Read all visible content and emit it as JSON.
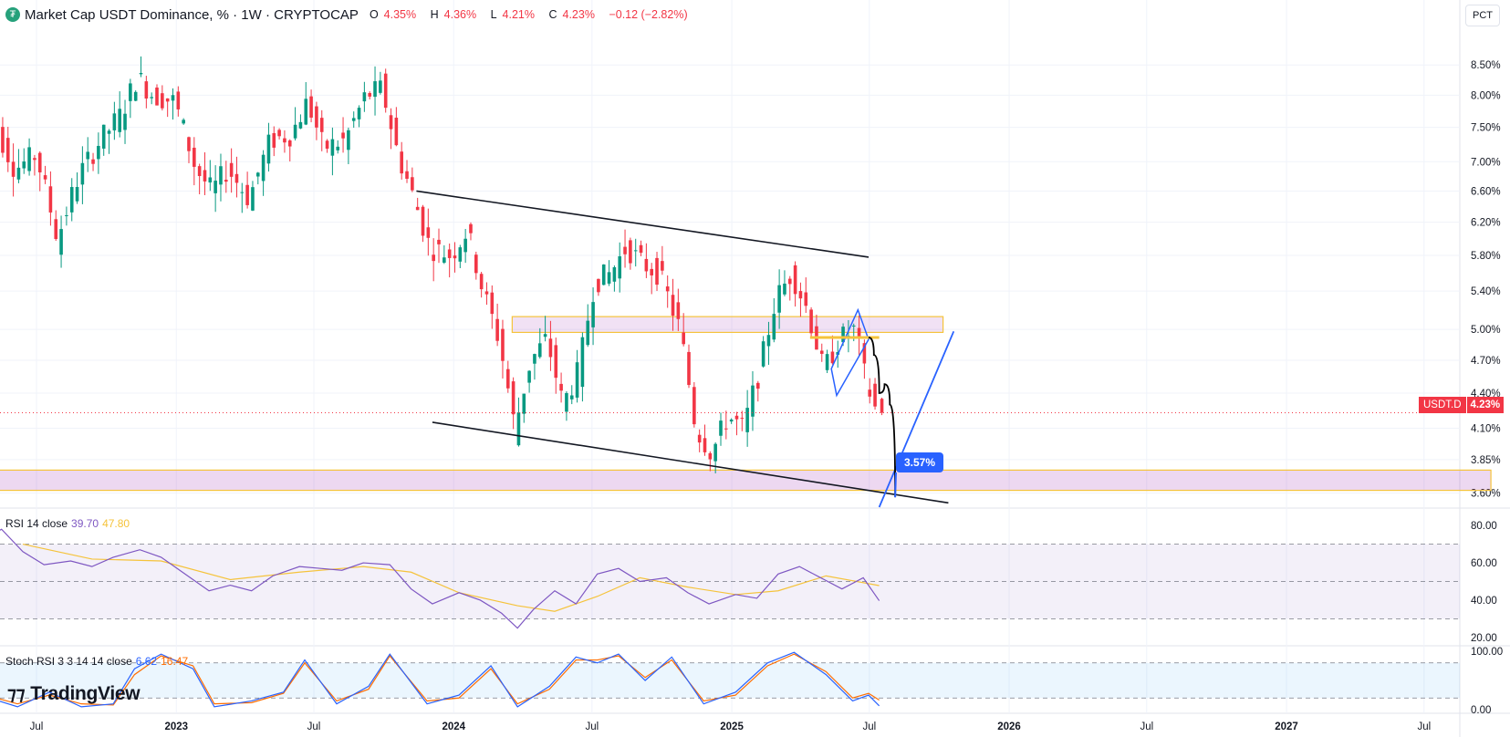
{
  "header": {
    "title": "Market Cap USDT Dominance, % · 1W · CRYPTOCAP",
    "open_label": "O",
    "open": "4.35%",
    "high_label": "H",
    "high": "4.36%",
    "low_label": "L",
    "low": "4.21%",
    "close_label": "C",
    "close": "4.23%",
    "change": "−0.12 (−2.82%)"
  },
  "scale_button": "PCT",
  "price_tag": {
    "symbol": "USDT.D",
    "value": "4.23%"
  },
  "target_callout": "3.57%",
  "rsi_label": {
    "name": "RSI 14 close",
    "value": "39.70",
    "ma": "47.80"
  },
  "stoch_label": {
    "name": "Stoch RSI 3 3 14 14 close",
    "k": "6.62",
    "d": "16.47"
  },
  "brand": "TradingView",
  "colors": {
    "up": "#089981",
    "down": "#f23645",
    "rsi": "#7e57c2",
    "rsi_ma": "#f5c33b",
    "stoch_k": "#2962ff",
    "stoch_d": "#ff6d00",
    "zone": "#f5c33b"
  },
  "chart_data": [
    {
      "type": "candlestick",
      "title": "Market Cap USDT Dominance, % · 1W · CRYPTOCAP",
      "y_ticks": [
        "8.50%",
        "8.00%",
        "7.50%",
        "7.00%",
        "6.60%",
        "6.20%",
        "5.80%",
        "5.40%",
        "5.00%",
        "4.70%",
        "4.40%",
        "4.10%",
        "3.85%",
        "3.60%"
      ],
      "x_ticks": [
        "Jul",
        "2023",
        "Jul",
        "2024",
        "Jul",
        "2025",
        "Jul",
        "2026",
        "Jul",
        "2027",
        "Jul"
      ],
      "x_tick_dates": [
        "2022-07-01",
        "2023-01-01",
        "2023-07-01",
        "2024-01-01",
        "2024-07-01",
        "2025-01-01",
        "2025-07-01",
        "2026-01-01",
        "2026-07-01",
        "2027-01-01",
        "2027-07-01"
      ],
      "ylim": [
        3.5,
        9.2
      ],
      "last_value": 4.23,
      "price_path": [
        [
          "2022-04-25",
          5.8
        ],
        [
          "2022-05-16",
          7.4
        ],
        [
          "2022-06-06",
          6.9
        ],
        [
          "2022-07-04",
          7.1
        ],
        [
          "2022-08-01",
          6.0
        ],
        [
          "2022-08-29",
          6.8
        ],
        [
          "2022-09-26",
          7.3
        ],
        [
          "2022-10-24",
          7.7
        ],
        [
          "2022-11-14",
          8.3
        ],
        [
          "2022-12-05",
          8.0
        ],
        [
          "2023-01-02",
          7.9
        ],
        [
          "2023-01-30",
          6.9
        ],
        [
          "2023-02-20",
          6.6
        ],
        [
          "2023-03-13",
          6.9
        ],
        [
          "2023-04-10",
          6.5
        ],
        [
          "2023-05-08",
          7.3
        ],
        [
          "2023-06-05",
          7.4
        ],
        [
          "2023-06-26",
          7.9
        ],
        [
          "2023-07-17",
          7.2
        ],
        [
          "2023-08-14",
          7.3
        ],
        [
          "2023-09-11",
          8.0
        ],
        [
          "2023-10-02",
          8.1
        ],
        [
          "2023-10-23",
          7.1
        ],
        [
          "2023-11-13",
          6.5
        ],
        [
          "2023-12-04",
          5.9
        ],
        [
          "2024-01-01",
          5.8
        ],
        [
          "2024-01-22",
          6.1
        ],
        [
          "2024-02-12",
          5.4
        ],
        [
          "2024-03-04",
          4.9
        ],
        [
          "2024-03-25",
          4.1
        ],
        [
          "2024-04-15",
          4.7
        ],
        [
          "2024-05-06",
          4.9
        ],
        [
          "2024-05-27",
          4.3
        ],
        [
          "2024-06-17",
          4.6
        ],
        [
          "2024-07-08",
          5.5
        ],
        [
          "2024-07-29",
          5.6
        ],
        [
          "2024-08-19",
          5.9
        ],
        [
          "2024-09-09",
          5.7
        ],
        [
          "2024-09-30",
          5.6
        ],
        [
          "2024-10-28",
          5.0
        ],
        [
          "2024-11-18",
          4.1
        ],
        [
          "2024-12-09",
          3.9
        ],
        [
          "2024-12-30",
          4.2
        ],
        [
          "2025-01-20",
          4.1
        ],
        [
          "2025-02-10",
          4.6
        ],
        [
          "2025-03-03",
          5.3
        ],
        [
          "2025-03-24",
          5.6
        ],
        [
          "2025-04-14",
          5.2
        ],
        [
          "2025-05-05",
          4.6
        ],
        [
          "2025-05-26",
          4.9
        ],
        [
          "2025-06-16",
          5.0
        ],
        [
          "2025-06-30",
          4.5
        ],
        [
          "2025-07-14",
          4.23
        ]
      ],
      "drawings": {
        "channel_upper": [
          [
            "2023-11-13",
            6.6
          ],
          [
            "2025-06-30",
            5.78
          ]
        ],
        "channel_lower": [
          [
            "2023-12-04",
            4.15
          ],
          [
            "2025-10-13",
            3.53
          ]
        ],
        "resistance_zone": {
          "from": "2024-03-18",
          "to": "2025-10-06",
          "low": 4.97,
          "high": 5.13
        },
        "support_zone": {
          "from": "2022-04-18",
          "to": "2027-09-27",
          "low": 3.62,
          "high": 3.77
        },
        "rising_line": [
          [
            "2025-07-14",
            3.5
          ],
          [
            "2025-10-20",
            4.98
          ]
        ],
        "projection_path": [
          [
            "2025-06-30",
            4.92
          ],
          [
            "2025-07-07",
            4.75
          ],
          [
            "2025-07-14",
            4.4
          ],
          [
            "2025-07-21",
            4.48
          ],
          [
            "2025-07-28",
            4.3
          ],
          [
            "2025-08-04",
            3.57
          ]
        ],
        "target_value": 3.57
      }
    },
    {
      "type": "line",
      "title": "RSI 14 close",
      "y_ticks": [
        "80.00",
        "60.00",
        "40.00",
        "20.00"
      ],
      "ylim": [
        17,
        83
      ],
      "bands": [
        70,
        50,
        30
      ],
      "series": [
        {
          "name": "RSI 14 close",
          "path": [
            [
              "2022-04-25",
              73
            ],
            [
              "2022-05-16",
              78
            ],
            [
              "2022-06-13",
              66
            ],
            [
              "2022-07-11",
              59
            ],
            [
              "2022-08-15",
              61
            ],
            [
              "2022-09-12",
              58
            ],
            [
              "2022-10-10",
              63
            ],
            [
              "2022-11-14",
              67
            ],
            [
              "2022-12-12",
              63
            ],
            [
              "2023-01-09",
              55
            ],
            [
              "2023-02-13",
              45
            ],
            [
              "2023-03-13",
              48
            ],
            [
              "2023-04-10",
              45
            ],
            [
              "2023-05-08",
              53
            ],
            [
              "2023-06-12",
              58
            ],
            [
              "2023-07-10",
              57
            ],
            [
              "2023-08-07",
              56
            ],
            [
              "2023-09-04",
              60
            ],
            [
              "2023-10-09",
              59
            ],
            [
              "2023-11-06",
              46
            ],
            [
              "2023-12-04",
              38
            ],
            [
              "2024-01-08",
              44
            ],
            [
              "2024-02-05",
              40
            ],
            [
              "2024-03-04",
              33
            ],
            [
              "2024-03-25",
              25
            ],
            [
              "2024-04-15",
              35
            ],
            [
              "2024-05-13",
              45
            ],
            [
              "2024-06-10",
              38
            ],
            [
              "2024-07-08",
              54
            ],
            [
              "2024-08-05",
              57
            ],
            [
              "2024-09-02",
              50
            ],
            [
              "2024-10-07",
              52
            ],
            [
              "2024-11-04",
              44
            ],
            [
              "2024-12-02",
              38
            ],
            [
              "2025-01-06",
              43
            ],
            [
              "2025-02-03",
              41
            ],
            [
              "2025-03-03",
              54
            ],
            [
              "2025-03-31",
              58
            ],
            [
              "2025-04-28",
              52
            ],
            [
              "2025-05-26",
              46
            ],
            [
              "2025-06-23",
              52
            ],
            [
              "2025-07-14",
              39.7
            ]
          ]
        },
        {
          "name": "RSI-based MA",
          "path": [
            [
              "2022-06-13",
              70
            ],
            [
              "2022-09-12",
              62
            ],
            [
              "2022-12-12",
              61
            ],
            [
              "2023-03-13",
              51
            ],
            [
              "2023-06-12",
              55
            ],
            [
              "2023-09-04",
              58
            ],
            [
              "2023-11-06",
              55
            ],
            [
              "2024-01-08",
              44
            ],
            [
              "2024-03-25",
              37
            ],
            [
              "2024-05-13",
              34
            ],
            [
              "2024-07-08",
              42
            ],
            [
              "2024-09-02",
              52
            ],
            [
              "2024-11-04",
              47
            ],
            [
              "2025-01-06",
              43
            ],
            [
              "2025-03-03",
              45
            ],
            [
              "2025-05-05",
              53
            ],
            [
              "2025-07-14",
              47.8
            ]
          ]
        }
      ]
    },
    {
      "type": "line",
      "title": "Stoch RSI 3 3 14 14 close",
      "y_ticks": [
        "100.00",
        "0.00"
      ],
      "ylim": [
        -3,
        103
      ],
      "bands": [
        80,
        20
      ],
      "series": [
        {
          "name": "%K",
          "path": [
            [
              "2022-04-25",
              22
            ],
            [
              "2022-06-06",
              5
            ],
            [
              "2022-07-18",
              30
            ],
            [
              "2022-08-29",
              5
            ],
            [
              "2022-10-10",
              10
            ],
            [
              "2022-11-07",
              70
            ],
            [
              "2022-12-12",
              95
            ],
            [
              "2023-01-23",
              70
            ],
            [
              "2023-02-20",
              5
            ],
            [
              "2023-04-10",
              15
            ],
            [
              "2023-05-22",
              30
            ],
            [
              "2023-06-19",
              85
            ],
            [
              "2023-07-31",
              10
            ],
            [
              "2023-09-11",
              40
            ],
            [
              "2023-10-09",
              95
            ],
            [
              "2023-11-27",
              10
            ],
            [
              "2024-01-08",
              25
            ],
            [
              "2024-02-19",
              75
            ],
            [
              "2024-03-25",
              5
            ],
            [
              "2024-05-06",
              40
            ],
            [
              "2024-06-10",
              90
            ],
            [
              "2024-07-08",
              80
            ],
            [
              "2024-08-05",
              95
            ],
            [
              "2024-09-09",
              50
            ],
            [
              "2024-10-14",
              90
            ],
            [
              "2024-11-25",
              10
            ],
            [
              "2025-01-06",
              30
            ],
            [
              "2025-02-17",
              80
            ],
            [
              "2025-03-24",
              98
            ],
            [
              "2025-05-05",
              60
            ],
            [
              "2025-06-09",
              15
            ],
            [
              "2025-06-30",
              25
            ],
            [
              "2025-07-14",
              6.62
            ]
          ]
        },
        {
          "name": "%D",
          "path": [
            [
              "2022-04-25",
              25
            ],
            [
              "2022-06-06",
              10
            ],
            [
              "2022-07-18",
              25
            ],
            [
              "2022-08-29",
              10
            ],
            [
              "2022-10-10",
              8
            ],
            [
              "2022-11-07",
              60
            ],
            [
              "2022-12-12",
              92
            ],
            [
              "2023-01-23",
              75
            ],
            [
              "2023-02-20",
              10
            ],
            [
              "2023-04-10",
              12
            ],
            [
              "2023-05-22",
              28
            ],
            [
              "2023-06-19",
              80
            ],
            [
              "2023-07-31",
              15
            ],
            [
              "2023-09-11",
              35
            ],
            [
              "2023-10-09",
              92
            ],
            [
              "2023-11-27",
              15
            ],
            [
              "2024-01-08",
              20
            ],
            [
              "2024-02-19",
              70
            ],
            [
              "2024-03-25",
              10
            ],
            [
              "2024-05-06",
              35
            ],
            [
              "2024-06-10",
              85
            ],
            [
              "2024-07-08",
              85
            ],
            [
              "2024-08-05",
              92
            ],
            [
              "2024-09-09",
              55
            ],
            [
              "2024-10-14",
              85
            ],
            [
              "2024-11-25",
              15
            ],
            [
              "2025-01-06",
              25
            ],
            [
              "2025-02-17",
              75
            ],
            [
              "2025-03-24",
              95
            ],
            [
              "2025-05-05",
              65
            ],
            [
              "2025-06-09",
              20
            ],
            [
              "2025-06-30",
              28
            ],
            [
              "2025-07-14",
              16.47
            ]
          ]
        }
      ]
    }
  ]
}
